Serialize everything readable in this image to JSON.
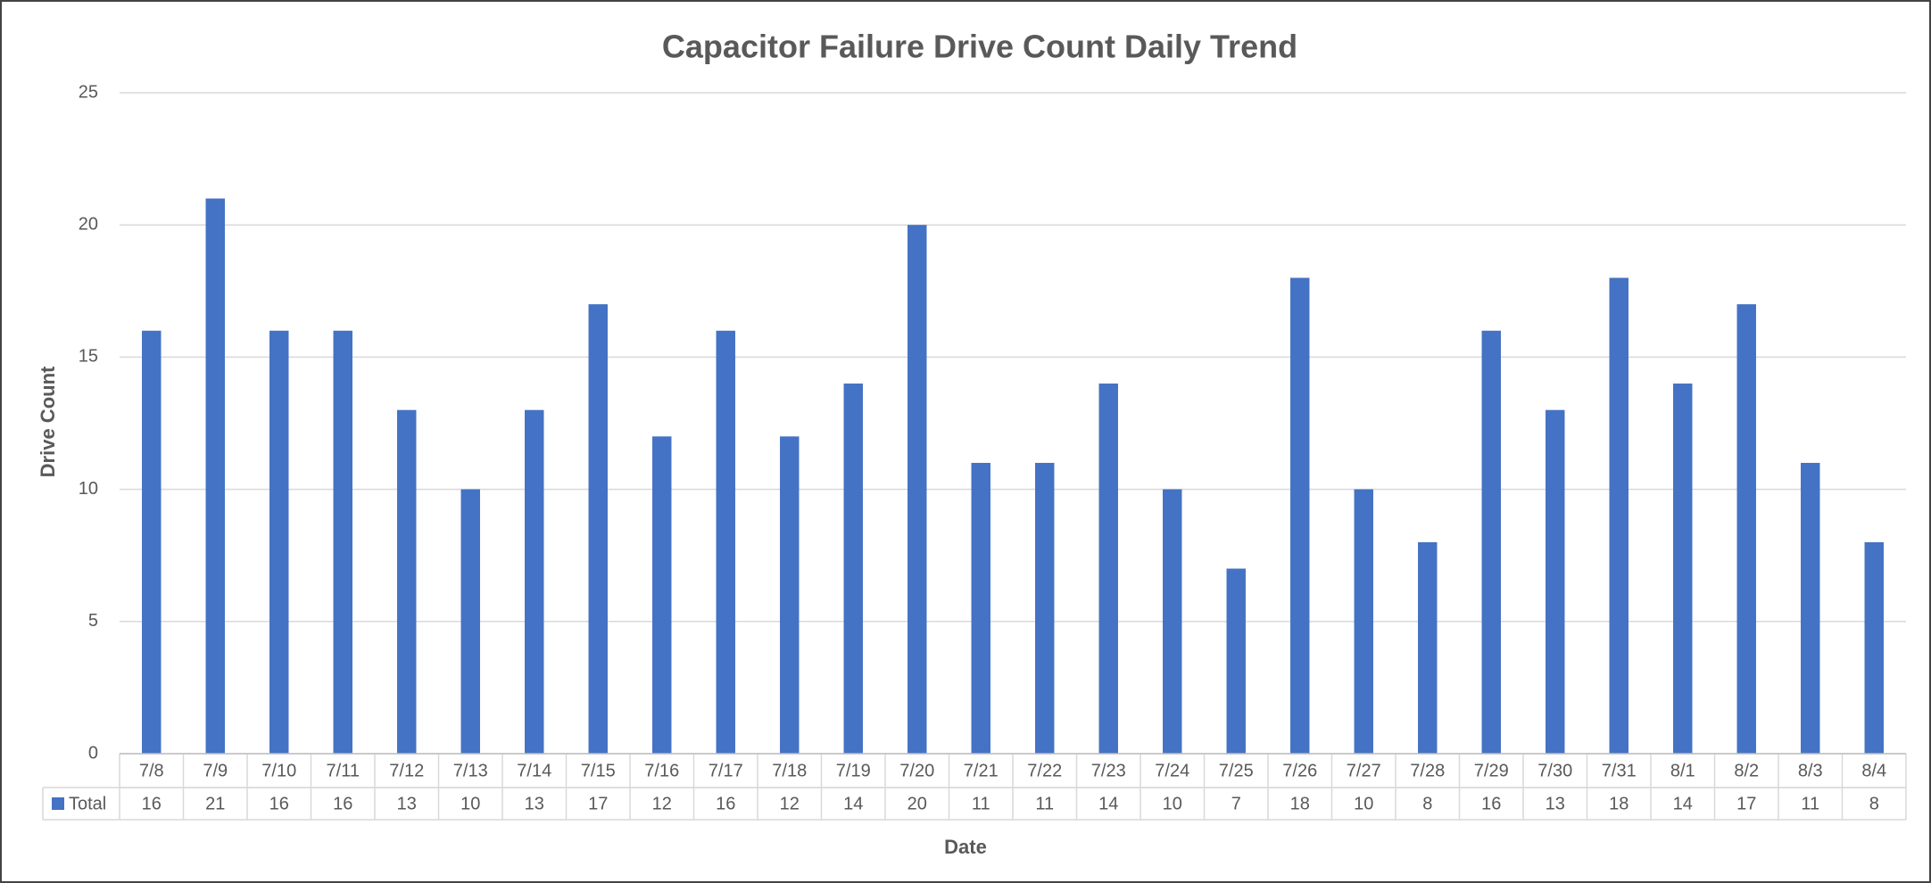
{
  "chart_data": {
    "type": "bar",
    "title": "Capacitor Failure Drive Count Daily Trend",
    "x_label": "Date",
    "y_label": "Drive Count",
    "categories": [
      "7/8",
      "7/9",
      "7/10",
      "7/11",
      "7/12",
      "7/13",
      "7/14",
      "7/15",
      "7/16",
      "7/17",
      "7/18",
      "7/19",
      "7/20",
      "7/21",
      "7/22",
      "7/23",
      "7/24",
      "7/25",
      "7/26",
      "7/27",
      "7/28",
      "7/29",
      "7/30",
      "7/31",
      "8/1",
      "8/2",
      "8/3",
      "8/4"
    ],
    "series": [
      {
        "name": "Total",
        "color": "#4472c4",
        "values": [
          16,
          21,
          16,
          16,
          13,
          10,
          13,
          17,
          12,
          16,
          12,
          14,
          20,
          11,
          11,
          14,
          10,
          7,
          18,
          10,
          8,
          16,
          13,
          18,
          14,
          17,
          11,
          8
        ]
      }
    ],
    "ylim": [
      0,
      25
    ],
    "yticks": [
      0,
      5,
      10,
      15,
      20,
      25
    ],
    "grid": true
  }
}
